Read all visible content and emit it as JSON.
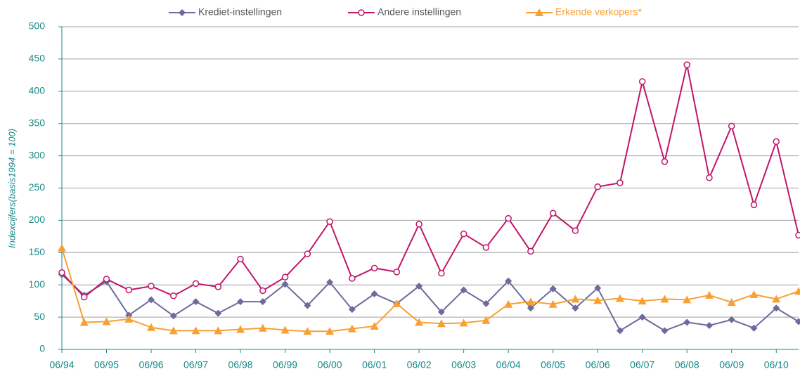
{
  "chart_data": {
    "type": "line",
    "y_label": "Indexcijfers(basis1994 = 100)",
    "categories": [
      "06/94",
      null,
      "06/95",
      null,
      "06/96",
      null,
      "06/97",
      null,
      "06/98",
      null,
      "06/99",
      null,
      "06/00",
      null,
      "06/01",
      null,
      "06/02",
      null,
      "06/03",
      null,
      "06/04",
      null,
      "06/05",
      null,
      "06/06",
      null,
      "06/07",
      null,
      "06/08",
      null,
      "06/09",
      null,
      "06/10",
      null
    ],
    "series": [
      {
        "name": "Krediet-instellingen",
        "color": "#6b6b9e",
        "marker": "diamond",
        "values": [
          116,
          84,
          105,
          53,
          77,
          52,
          74,
          56,
          74,
          74,
          101,
          68,
          104,
          62,
          86,
          71,
          98,
          58,
          92,
          71,
          106,
          64,
          94,
          64,
          95,
          29,
          50,
          29,
          42,
          37,
          46,
          33,
          64,
          43
        ]
      },
      {
        "name": "Andere instellingen",
        "color": "#c0166b",
        "marker": "circle",
        "values": [
          119,
          81,
          109,
          92,
          98,
          83,
          102,
          97,
          140,
          91,
          112,
          148,
          198,
          110,
          126,
          120,
          194,
          118,
          179,
          158,
          203,
          152,
          211,
          184,
          252,
          258,
          415,
          291,
          441,
          266,
          346,
          224,
          322,
          177
        ]
      },
      {
        "name": "Erkende verkopers*",
        "color": "#f7a033",
        "marker": "triangle",
        "values": [
          157,
          42,
          43,
          47,
          34,
          29,
          29,
          29,
          31,
          33,
          30,
          28,
          28,
          32,
          36,
          71,
          42,
          40,
          41,
          45,
          70,
          74,
          70,
          78,
          76,
          79,
          75,
          78,
          77,
          84,
          73,
          85,
          78,
          90
        ]
      }
    ],
    "ylim": [
      0,
      500
    ],
    "yticks": [
      0,
      50,
      100,
      150,
      200,
      250,
      300,
      350,
      400,
      450,
      500
    ],
    "grid": true,
    "legend": "top"
  }
}
